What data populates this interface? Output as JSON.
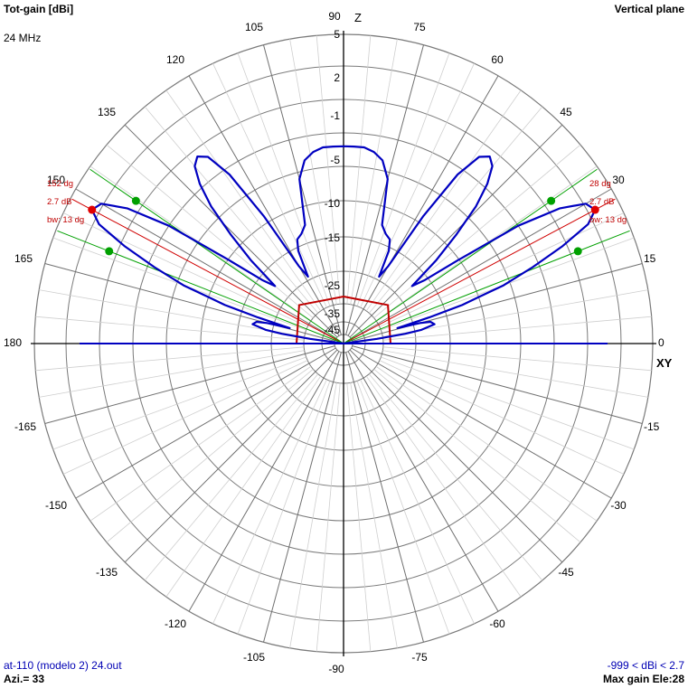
{
  "header": {
    "title_left": "Tot-gain [dBi]",
    "title_right": "Vertical plane",
    "frequency": "24 MHz"
  },
  "footer": {
    "file": "at-110 (modelo 2) 24.out",
    "azimuth": "Azi.= 33",
    "range": "-999 < dBi < 2.7",
    "max_gain": "Max gain Ele:28"
  },
  "chart_data": {
    "type": "polar",
    "axis_labels": {
      "vertical": "Z",
      "horizontal": "XY"
    },
    "angle_ticks": [
      0,
      15,
      30,
      45,
      60,
      75,
      90,
      105,
      120,
      135,
      150,
      165,
      180,
      -165,
      -150,
      -135,
      -120,
      -105,
      -90,
      -75,
      -60,
      -45,
      -30,
      -15
    ],
    "radial_ticks": [
      5,
      2,
      -1,
      -5,
      -10,
      -15,
      -25,
      -35,
      -45
    ],
    "gain_range": [
      -999,
      2.7
    ],
    "series": [
      {
        "color": "#0000c0",
        "points": [
          [
            0,
            -99
          ],
          [
            5,
            -99
          ],
          [
            8,
            -50
          ],
          [
            9,
            -38
          ],
          [
            10,
            -33
          ],
          [
            12,
            -29
          ],
          [
            14,
            -30
          ],
          [
            15,
            -33
          ],
          [
            16,
            -40
          ],
          [
            17,
            -30
          ],
          [
            18,
            -20
          ],
          [
            19,
            -15
          ],
          [
            20,
            -11
          ],
          [
            22,
            -6
          ],
          [
            24,
            -1.5
          ],
          [
            26,
            1.5
          ],
          [
            28,
            2.7
          ],
          [
            30,
            2.2
          ],
          [
            32,
            0
          ],
          [
            34,
            -5
          ],
          [
            36,
            -15
          ],
          [
            38,
            -26
          ],
          [
            40,
            -30
          ],
          [
            42,
            -20
          ],
          [
            44,
            -13
          ],
          [
            46,
            -8
          ],
          [
            48,
            -4.5
          ],
          [
            50,
            -2.5
          ],
          [
            52,
            -1.8
          ],
          [
            54,
            -2.6
          ],
          [
            56,
            -6
          ],
          [
            58,
            -14
          ],
          [
            60,
            -30
          ],
          [
            62,
            -34
          ],
          [
            64,
            -26
          ],
          [
            66,
            -23
          ],
          [
            69,
            -22
          ],
          [
            72,
            -20
          ],
          [
            75,
            -11
          ],
          [
            78,
            -8.5
          ],
          [
            81,
            -7.5
          ],
          [
            84,
            -7
          ],
          [
            87,
            -7
          ],
          [
            90,
            -7
          ],
          [
            93,
            -7
          ],
          [
            96,
            -7
          ],
          [
            99,
            -7.5
          ],
          [
            102,
            -8.5
          ],
          [
            105,
            -11
          ],
          [
            108,
            -20
          ],
          [
            111,
            -22
          ],
          [
            114,
            -23
          ],
          [
            116,
            -26
          ],
          [
            118,
            -34
          ],
          [
            120,
            -30
          ],
          [
            122,
            -14
          ],
          [
            124,
            -6
          ],
          [
            126,
            -2.6
          ],
          [
            128,
            -1.8
          ],
          [
            130,
            -2.5
          ],
          [
            132,
            -4.5
          ],
          [
            134,
            -8
          ],
          [
            136,
            -13
          ],
          [
            138,
            -20
          ],
          [
            140,
            -30
          ],
          [
            142,
            -26
          ],
          [
            144,
            -15
          ],
          [
            146,
            -5
          ],
          [
            148,
            0
          ],
          [
            150,
            2.2
          ],
          [
            152,
            2.7
          ],
          [
            154,
            1.5
          ],
          [
            156,
            -1.5
          ],
          [
            158,
            -6
          ],
          [
            160,
            -11
          ],
          [
            161,
            -15
          ],
          [
            162,
            -20
          ],
          [
            163,
            -30
          ],
          [
            164,
            -40
          ],
          [
            165,
            -33
          ],
          [
            166,
            -30
          ],
          [
            168,
            -29
          ],
          [
            170,
            -33
          ],
          [
            171,
            -38
          ],
          [
            172,
            -50
          ],
          [
            175,
            -99
          ],
          [
            180,
            -99
          ]
        ]
      }
    ],
    "max_gain_lobes": [
      {
        "angle": 28,
        "gain": 2.7,
        "beamwidth": 13,
        "half_power_angles": [
          21.5,
          34.5
        ],
        "label": "28 dg",
        "gain_label": "2.7 dB",
        "bw_label": "bw: 13 dg"
      },
      {
        "angle": 152,
        "gain": 2.7,
        "beamwidth": 13,
        "half_power_angles": [
          145.5,
          158.5
        ],
        "label": "152 dg",
        "gain_label": "2.7 dB",
        "bw_label": "bw: 13 dg"
      }
    ],
    "ground_marker": {
      "color": "#c00000",
      "points": [
        [
          0,
          -45
        ],
        [
          41,
          -20
        ],
        [
          90,
          -25
        ],
        [
          139,
          -20
        ],
        [
          180,
          -45
        ]
      ]
    }
  }
}
